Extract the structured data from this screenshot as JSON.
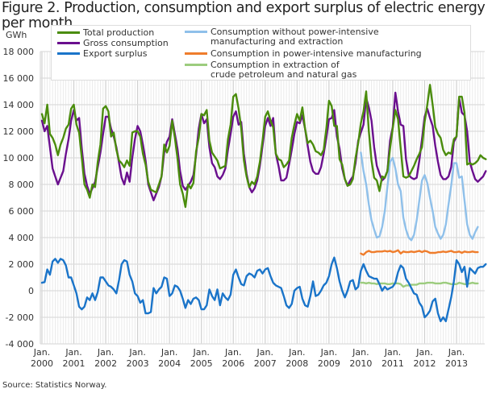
{
  "title": "Figure 2. Production, consumption and export surplus of electric energy per month",
  "unit": "GWh",
  "source": "Source: Statistics Norway.",
  "chart_data": {
    "type": "line",
    "title": "Figure 2. Production, consumption and export surplus of electric energy per month",
    "xlabel": "",
    "ylabel": "GWh",
    "ylim": [
      -4000,
      18000
    ],
    "yticks": [
      -4000,
      -2000,
      0,
      2000,
      4000,
      6000,
      8000,
      10000,
      12000,
      14000,
      16000,
      18000
    ],
    "ytick_labels": [
      "-4 000",
      "-2 000",
      "0",
      "2 000",
      "4 000",
      "6 000",
      "8 000",
      "10 000",
      "12 000",
      "14 000",
      "16 000",
      "18 000"
    ],
    "x_start": "2000-01",
    "x_frequency": "monthly",
    "xtick_labels": [
      [
        "Jan.",
        "2000"
      ],
      [
        "Jan.",
        "2001"
      ],
      [
        "Jan.",
        "2002"
      ],
      [
        "Jan.",
        "2003"
      ],
      [
        "Jan.",
        "2004"
      ],
      [
        "Jan.",
        "2005"
      ],
      [
        "Jan.",
        "2006"
      ],
      [
        "Jan.",
        "2007"
      ],
      [
        "Jan.",
        "2008"
      ],
      [
        "Jan.",
        "2009"
      ],
      [
        "Jan.",
        "2010"
      ],
      [
        "Jan.",
        "2011"
      ],
      [
        "Jan.",
        "2012"
      ],
      [
        "Jan.",
        "2013"
      ]
    ],
    "grid": true,
    "legend_position": "top",
    "series": [
      {
        "name": "Total production",
        "color": "#4a8c0c",
        "start_index": 0,
        "values": [
          13300,
          12600,
          14000,
          11800,
          11500,
          11000,
          10200,
          11000,
          11500,
          12200,
          12500,
          13700,
          14000,
          12500,
          11900,
          10000,
          8000,
          7600,
          7000,
          8000,
          7800,
          9700,
          11000,
          13700,
          13900,
          13500,
          11600,
          11900,
          10600,
          9800,
          9600,
          9300,
          9800,
          9400,
          11900,
          12000,
          12000,
          11600,
          10300,
          9500,
          8200,
          7600,
          7500,
          7400,
          8000,
          8600,
          11000,
          10400,
          10900,
          12800,
          11500,
          10000,
          8000,
          7300,
          6300,
          8000,
          7700,
          8100,
          10500,
          11500,
          13300,
          13200,
          13600,
          11300,
          10400,
          10100,
          9800,
          9200,
          9300,
          9400,
          11400,
          12500,
          14600,
          14800,
          13700,
          12200,
          9800,
          8600,
          7800,
          8200,
          8000,
          8600,
          9700,
          11300,
          13100,
          13500,
          12800,
          12300,
          10300,
          9900,
          9800,
          9300,
          9500,
          9800,
          11500,
          12500,
          13300,
          12800,
          13800,
          12200,
          11100,
          11300,
          11000,
          10500,
          10400,
          10200,
          10600,
          12200,
          14300,
          13900,
          12400,
          12400,
          9900,
          9500,
          8400,
          7900,
          8000,
          8400,
          10000,
          11100,
          12600,
          13500,
          15000,
          12000,
          9800,
          8500,
          8300,
          7500,
          8600,
          8500,
          9000,
          10700,
          12200,
          13600,
          12900,
          10700,
          8600,
          8500,
          8600,
          9000,
          9400,
          9900,
          10300,
          10800,
          12700,
          14000,
          15500,
          14000,
          12300,
          11800,
          11500,
          10600,
          10200,
          10400,
          10300,
          11400,
          11600,
          14600,
          14600,
          13400,
          9500,
          9600,
          9500,
          9600,
          9800,
          10200,
          10000,
          9900
        ]
      },
      {
        "name": "Gross consumption",
        "color": "#6a0f8e",
        "start_index": 0,
        "values": [
          12800,
          12000,
          12400,
          10800,
          9200,
          8600,
          8000,
          8500,
          9000,
          10300,
          11400,
          12800,
          13600,
          12800,
          13000,
          10700,
          8800,
          7900,
          7300,
          7700,
          8200,
          9300,
          10400,
          11800,
          13100,
          13100,
          12200,
          11600,
          10800,
          9600,
          8500,
          8000,
          8900,
          8200,
          10000,
          11400,
          12400,
          12000,
          11000,
          9800,
          8000,
          7400,
          6800,
          7300,
          7800,
          8600,
          10400,
          11200,
          11600,
          12900,
          11800,
          10700,
          9000,
          7900,
          7600,
          7900,
          8200,
          8700,
          10200,
          12200,
          13300,
          12600,
          12900,
          10800,
          9600,
          9300,
          8600,
          8400,
          8700,
          9200,
          10600,
          11800,
          13100,
          13500,
          12500,
          12700,
          10300,
          8800,
          7800,
          7400,
          7700,
          8300,
          9400,
          10900,
          12400,
          13000,
          12400,
          13000,
          10300,
          9400,
          8300,
          8300,
          8500,
          9500,
          10600,
          11800,
          12700,
          12600,
          13200,
          12200,
          10900,
          9700,
          9000,
          8800,
          8800,
          9300,
          10300,
          11500,
          12900,
          13000,
          13600,
          11600,
          10700,
          9200,
          8400,
          7900,
          8300,
          8600,
          9600,
          11300,
          11900,
          12500,
          14500,
          13800,
          12800,
          10800,
          9400,
          8800,
          8300,
          8500,
          9000,
          11300,
          12300,
          14900,
          13500,
          12500,
          12400,
          9900,
          8700,
          8500,
          8400,
          8500,
          9800,
          11400,
          13100,
          13700,
          13000,
          12400,
          10900,
          9700,
          8700,
          8400,
          8400,
          8600,
          9300,
          11200,
          11600,
          14500,
          13400,
          13200,
          12000,
          9700,
          9000,
          8400,
          8200,
          8400,
          8600,
          9000
        ]
      },
      {
        "name": "Export surplus",
        "color": "#1a74c9",
        "start_index": 0,
        "values": [
          600,
          650,
          1600,
          1200,
          2200,
          2400,
          2100,
          2400,
          2300,
          1900,
          1000,
          1000,
          400,
          -200,
          -1200,
          -1400,
          -1200,
          -500,
          -700,
          -200,
          -700,
          -100,
          1000,
          1000,
          700,
          400,
          300,
          100,
          -200,
          800,
          2000,
          2300,
          2200,
          1200,
          700,
          -200,
          -400,
          -900,
          -700,
          -1700,
          -1700,
          -1600,
          200,
          -200,
          100,
          300,
          1000,
          900,
          -400,
          -200,
          400,
          300,
          0,
          -600,
          -1300,
          -700,
          -1000,
          -600,
          -500,
          -700,
          -1400,
          -1400,
          -1100,
          100,
          -400,
          -700,
          100,
          -1100,
          -200,
          -500,
          -700,
          -300,
          1200,
          1600,
          1000,
          500,
          400,
          1100,
          1300,
          1200,
          1000,
          1500,
          1600,
          1300,
          1600,
          1700,
          1100,
          600,
          400,
          300,
          200,
          -400,
          -1100,
          -1300,
          -1000,
          0,
          200,
          300,
          -600,
          -1100,
          -1200,
          -400,
          700,
          -400,
          -300,
          0,
          400,
          600,
          1100,
          2000,
          2500,
          1700,
          700,
          0,
          -500,
          0,
          700,
          800,
          100,
          300,
          1500,
          2000,
          1500,
          1100,
          1000,
          900,
          900,
          500,
          0,
          300,
          100,
          200,
          300,
          600,
          1400,
          1900,
          1700,
          900,
          600,
          200,
          -200,
          -300,
          -900,
          -1200,
          -2000,
          -1800,
          -1500,
          -800,
          -600,
          -1700,
          -2300,
          -2000,
          -2300,
          -1400,
          -500,
          700,
          2300,
          2000,
          1400,
          1800,
          300,
          1700,
          1500,
          1300,
          1700,
          1800,
          1800,
          2000
        ]
      },
      {
        "name": "Consumption without power-intensive manufacturing and extraction",
        "color": "#8fc0ea",
        "start_index": 120,
        "values": [
          10400,
          9000,
          8000,
          6500,
          5300,
          4600,
          4000,
          4100,
          4800,
          6000,
          7800,
          9700,
          10000,
          9200,
          8000,
          7500,
          5500,
          4600,
          4000,
          3800,
          4200,
          5300,
          6800,
          8300,
          8700,
          8100,
          7000,
          6000,
          4800,
          4300,
          3900,
          4200,
          5000,
          6500,
          7900,
          9600,
          9600,
          8500,
          8600,
          6800,
          5000,
          4200,
          3900,
          4400,
          4800
        ]
      },
      {
        "name": "Consumption in power-intensive manufacturing",
        "color": "#ef7d2c",
        "start_index": 120,
        "values": [
          2800,
          2700,
          2900,
          3000,
          2900,
          2900,
          2950,
          2950,
          2950,
          3000,
          2950,
          3000,
          2900,
          2950,
          3050,
          2800,
          2950,
          2900,
          2900,
          2950,
          2900,
          2950,
          3000,
          2900,
          3000,
          2950,
          2850,
          2850,
          2850,
          2900,
          2900,
          2950,
          2900,
          2950,
          3000,
          2900,
          2900,
          2950,
          2850,
          2950,
          2900,
          2900,
          2950,
          2900,
          2900
        ]
      },
      {
        "name": "Consumption in extraction of crude petroleum and natural gas",
        "color": "#9ccc7e",
        "start_index": 120,
        "values": [
          600,
          600,
          550,
          600,
          550,
          550,
          500,
          550,
          550,
          550,
          500,
          500,
          550,
          550,
          550,
          500,
          300,
          400,
          400,
          450,
          450,
          450,
          550,
          550,
          550,
          600,
          600,
          600,
          550,
          550,
          550,
          600,
          600,
          550,
          500,
          500,
          500,
          600,
          550,
          500,
          500,
          550,
          600,
          550,
          550
        ]
      }
    ]
  },
  "legend": {
    "items": [
      {
        "label": "Total production",
        "color": "#4a8c0c"
      },
      {
        "label": "Gross consumption",
        "color": "#6a0f8e"
      },
      {
        "label": "Export surplus",
        "color": "#1a74c9"
      },
      {
        "label": "Consumption without power-intensive",
        "label2": "manufacturing and extraction",
        "color": "#8fc0ea"
      },
      {
        "label": "Consumption in power-intensive manufacturing",
        "color": "#ef7d2c"
      },
      {
        "label": "Consumption in extraction of",
        "label2": "crude petroleum and natural gas",
        "color": "#9ccc7e"
      }
    ]
  }
}
